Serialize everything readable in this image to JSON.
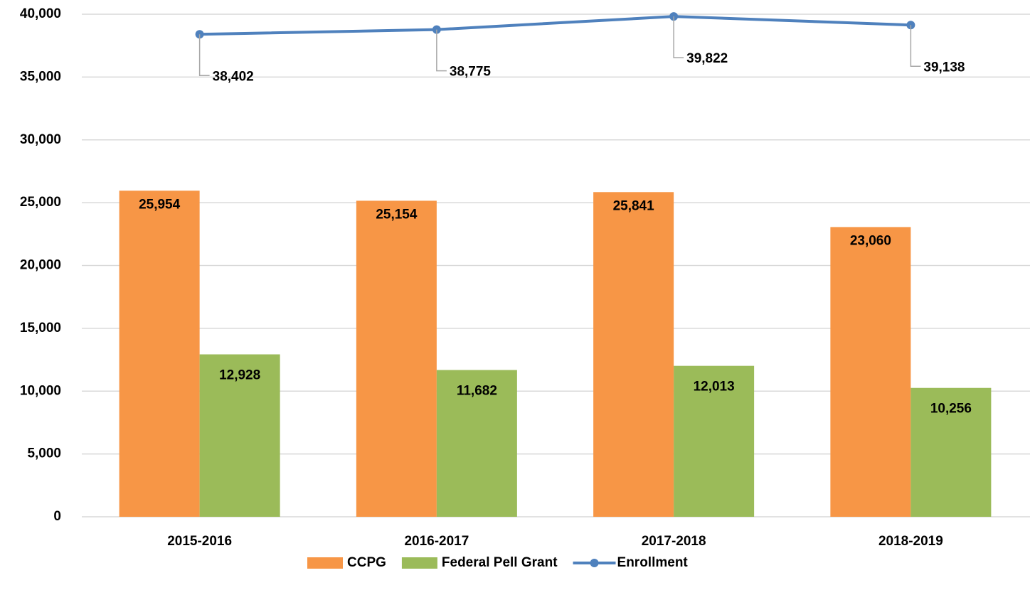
{
  "chart_data": {
    "type": "bar",
    "categories": [
      "2015-2016",
      "2016-2017",
      "2017-2018",
      "2018-2019"
    ],
    "series": [
      {
        "name": "CCPG",
        "type": "bar",
        "color": "#f79646",
        "values": [
          25954,
          25154,
          25841,
          23060
        ],
        "value_labels": [
          "25,954",
          "25,154",
          "25,841",
          "23,060"
        ]
      },
      {
        "name": "Federal Pell Grant",
        "type": "bar",
        "color": "#9bbb59",
        "values": [
          12928,
          11682,
          12013,
          10256
        ],
        "value_labels": [
          "12,928",
          "11,682",
          "12,013",
          "10,256"
        ]
      },
      {
        "name": "Enrollment",
        "type": "line",
        "color": "#4f81bd",
        "values": [
          38402,
          38775,
          39822,
          39138
        ],
        "value_labels": [
          "38,402",
          "38,775",
          "39,822",
          "39,138"
        ]
      }
    ],
    "ylim": [
      0,
      40000
    ],
    "yticks": [
      0,
      {
        "value": 5000,
        "label": "5,000"
      },
      {
        "value": 10000,
        "label": "10,000"
      },
      {
        "value": 15000,
        "label": "15,000"
      },
      {
        "value": 20000,
        "label": "20,000"
      },
      {
        "value": 25000,
        "label": "25,000"
      },
      {
        "value": 30000,
        "label": "30,000"
      },
      {
        "value": 35000,
        "label": "35,000"
      },
      {
        "value": 40000,
        "label": "40,000"
      }
    ],
    "grid": true,
    "legend": "bottom"
  }
}
